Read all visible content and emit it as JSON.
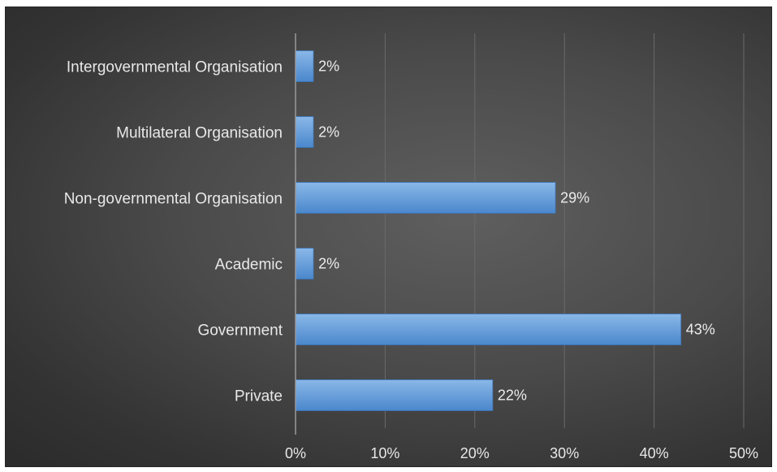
{
  "chart_data": {
    "type": "bar",
    "orientation": "horizontal",
    "categories": [
      "Intergovernmental Organisation",
      "Multilateral Organisation",
      "Non-governmental Organisation",
      "Academic",
      "Government",
      "Private"
    ],
    "values": [
      2,
      2,
      29,
      2,
      43,
      22
    ],
    "data_labels": [
      "2%",
      "2%",
      "29%",
      "2%",
      "43%",
      "22%"
    ],
    "x_ticks": [
      "0%",
      "10%",
      "20%",
      "30%",
      "40%",
      "50%"
    ],
    "xlim": [
      0,
      50
    ],
    "grid": true,
    "title": "",
    "xlabel": "",
    "ylabel": "",
    "colors": {
      "bar_top": "#8ab8e8",
      "bar_bottom": "#4a87cc",
      "bar_edge": "#3a73b4",
      "gridline": "#6a6a6a",
      "axis": "#9a9a9a",
      "text": "#e8e8e8"
    }
  }
}
